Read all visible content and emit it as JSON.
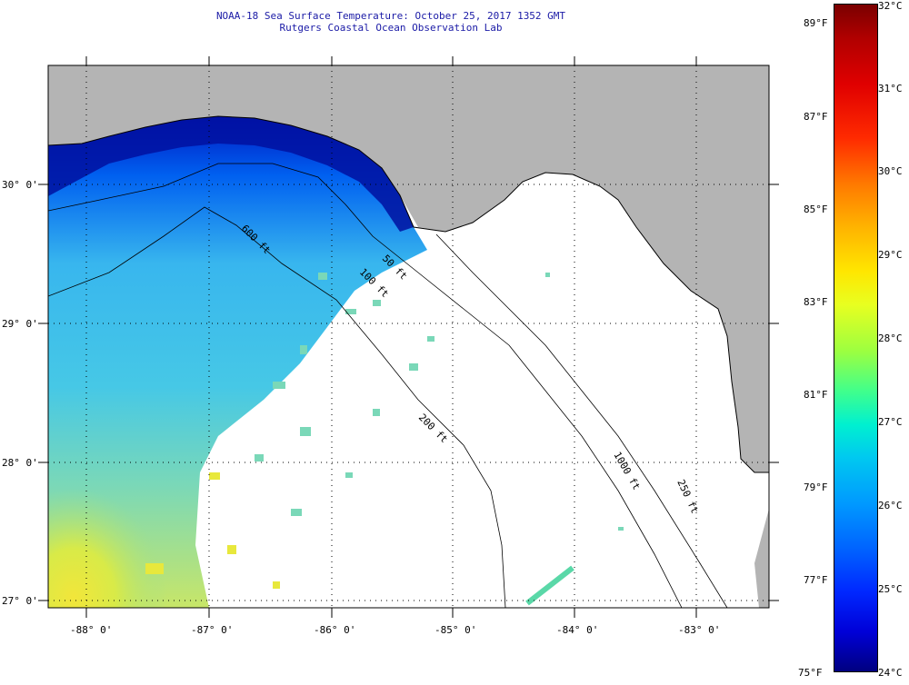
{
  "header": {
    "title_line1": "NOAA-18 Sea Surface Temperature:  October 25, 2017 1352 GMT",
    "title_line2": "Rutgers Coastal Ocean Observation Lab"
  },
  "map": {
    "lon_labels": [
      "-88° 0'",
      "-87° 0'",
      "-86° 0'",
      "-85° 0'",
      "-84° 0'",
      "-83° 0'"
    ],
    "lat_labels": [
      "30° 0'",
      "29° 0'",
      "28° 0'",
      "27° 0'"
    ],
    "contour_labels": [
      "50 ft",
      "100 ft",
      "600 ft",
      "200 ft",
      "1000 ft",
      "250 ft"
    ],
    "colors": {
      "land": "#b4b4b4",
      "no_data": "#ffffff",
      "coastline": "#000000"
    }
  },
  "colorbar": {
    "fahrenheit_labels": [
      "89°F",
      "87°F",
      "85°F",
      "83°F",
      "81°F",
      "79°F",
      "77°F",
      "75°F"
    ],
    "celsius_labels": [
      "32°C",
      "31°C",
      "30°C",
      "29°C",
      "28°C",
      "27°C",
      "26°C",
      "25°C",
      "24°C"
    ],
    "colors": [
      "#7a0000",
      "#e00000",
      "#ff7a00",
      "#ffe600",
      "#9cff40",
      "#00f0d0",
      "#0098ff",
      "#0028ff",
      "#000080"
    ]
  }
}
